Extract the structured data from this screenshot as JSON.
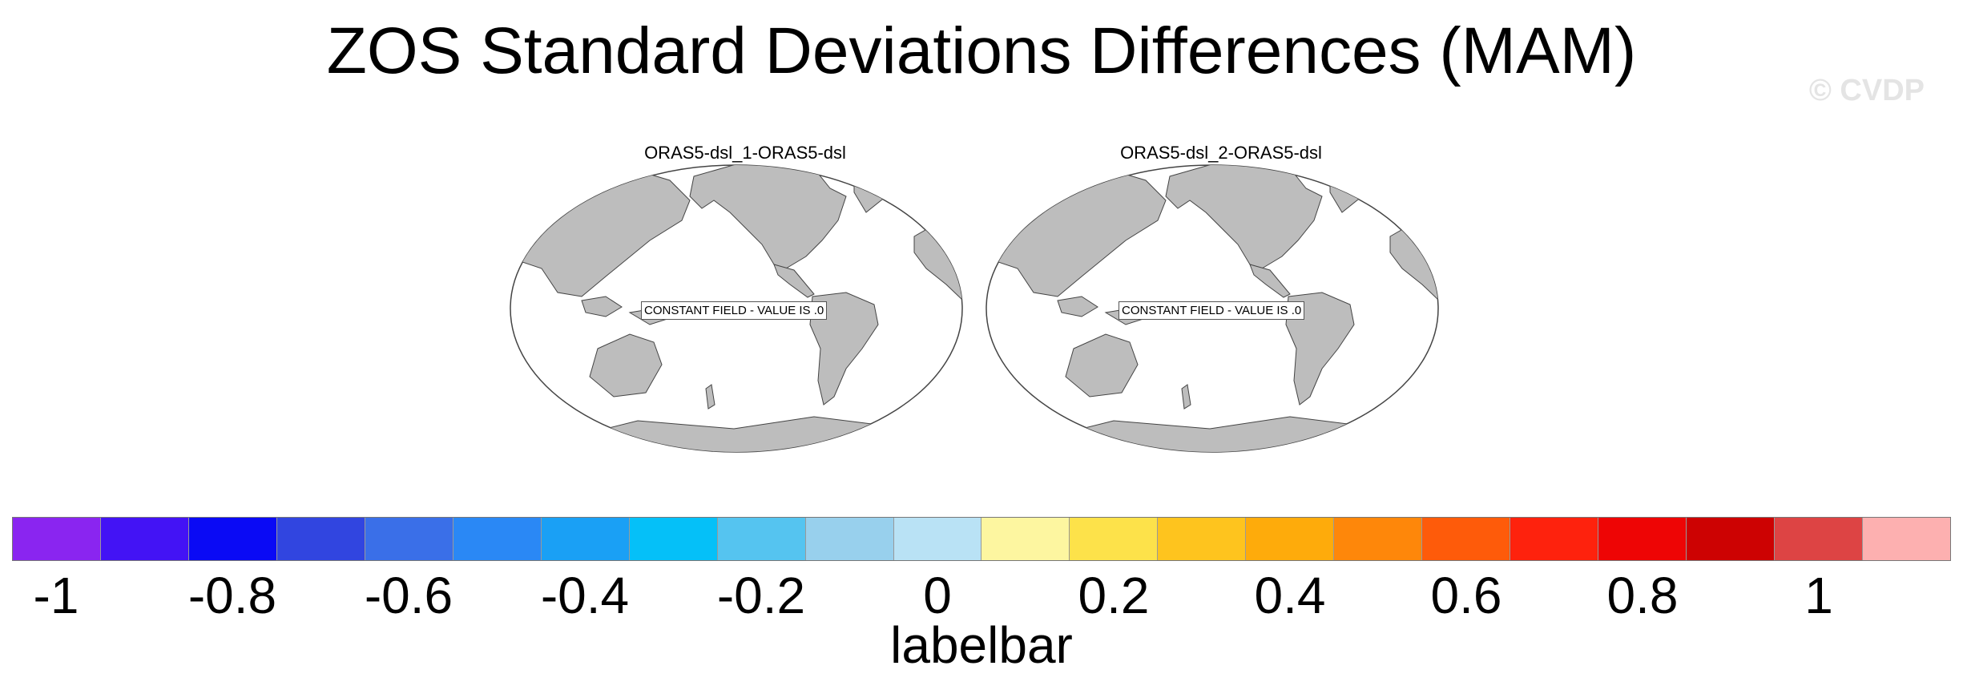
{
  "title": "ZOS Standard Deviations Differences (MAM)",
  "copyright": "© CVDP",
  "panels": [
    {
      "title": "ORAS5-dsl_1-ORAS5-dsl",
      "label": "CONSTANT FIELD - VALUE IS .0"
    },
    {
      "title": "ORAS5-dsl_2-ORAS5-dsl",
      "label": "CONSTANT FIELD - VALUE IS .0"
    }
  ],
  "colors": {
    "land": "#bdbdbd",
    "ocean": "#ffffff",
    "coast": "#444444"
  },
  "labelbar": {
    "title": "labelbar",
    "colors": [
      "#8a25f0",
      "#4313f5",
      "#0a0af5",
      "#3145e0",
      "#3a6fe8",
      "#2a88f5",
      "#1aa0f5",
      "#05c0f8",
      "#55c4f0",
      "#98d0ed",
      "#b9e2f5",
      "#fdf6a0",
      "#fde24a",
      "#fec41e",
      "#feab0b",
      "#fe870a",
      "#fe5b0a",
      "#fe220d",
      "#ee0505",
      "#cd0202",
      "#dd4444",
      "#fdb0b0"
    ],
    "ticks": [
      "-1",
      "-0.8",
      "-0.6",
      "-0.4",
      "-0.2",
      "0",
      "0.2",
      "0.4",
      "0.6",
      "0.8",
      "1"
    ]
  }
}
